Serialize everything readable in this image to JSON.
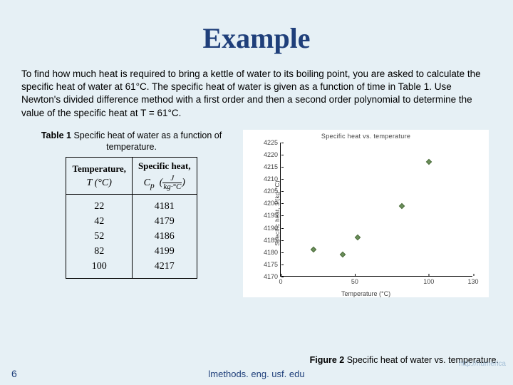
{
  "title": "Example",
  "body": "To find how much heat is required to bring a kettle of water to its boiling point, you are asked to calculate the specific heat of water at 61°C.  The specific heat of water is given as a function of time in Table 1. Use Newton's divided difference method with a first order and then a second order polynomial to determine the value of the specific heat at T = 61°C.",
  "table": {
    "caption_bold": "Table 1",
    "caption_rest": " Specific heat of water as a function of temperature.",
    "col1_label": "Temperature,",
    "col1_unit_html": "T (°C)",
    "col2_label": "Specific heat,",
    "col2_unit_html": "C_p  ( J / (kg·°C) )",
    "temps": [
      22,
      42,
      52,
      82,
      100
    ],
    "cps": [
      4181,
      4179,
      4186,
      4199,
      4217
    ]
  },
  "chart": {
    "title": "Specific heat vs. temperature",
    "xlabel": "Temperature (°C)",
    "ylabel": "Specific heat, J/(kg·°C)",
    "xlim": [
      0,
      130
    ],
    "ylim": [
      4170,
      4225
    ],
    "xticks": [
      0,
      50,
      100,
      130
    ],
    "yticks_major": [
      4170,
      4180,
      4190,
      4200,
      4210,
      4220
    ],
    "yticks_minor": [
      4175,
      4185,
      4195,
      4205,
      4215,
      4225
    ],
    "marker_color": "#6b8e5a",
    "bg": "#ffffff",
    "points": [
      {
        "x": 22,
        "y": 4181
      },
      {
        "x": 42,
        "y": 4179
      },
      {
        "x": 52,
        "y": 4186
      },
      {
        "x": 82,
        "y": 4199
      },
      {
        "x": 100,
        "y": 4217
      }
    ]
  },
  "fig_caption_bold": "Figure 2",
  "fig_caption_rest": " Specific heat of water vs. temperature.",
  "page_num": "6",
  "footer_url": "lmethods. eng. usf. edu",
  "watermark": "http://numerica"
}
